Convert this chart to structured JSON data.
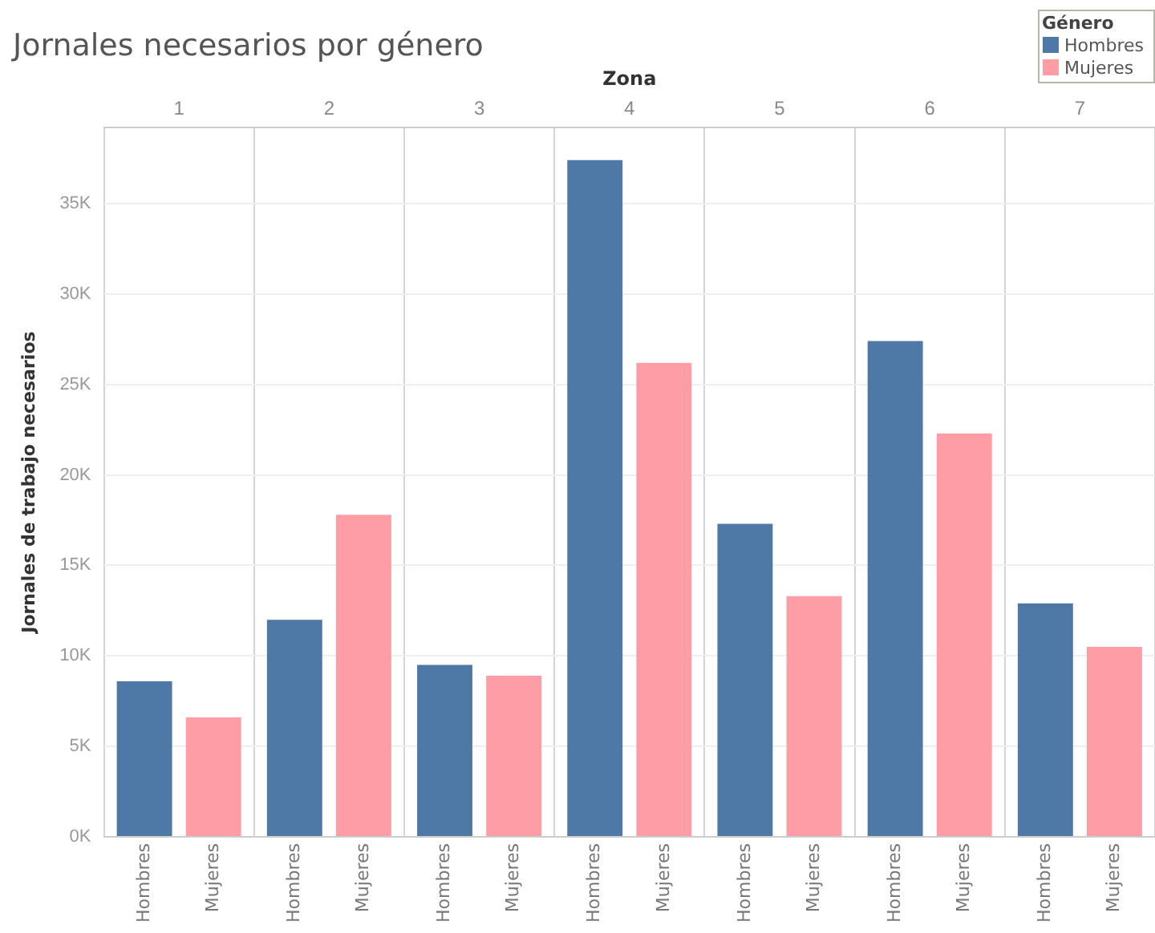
{
  "chart_data": {
    "type": "bar",
    "title": "Jornales necesarios por género",
    "xlabel": "Zona",
    "ylabel": "Jornales de trabajo necesarios",
    "legend_title": "Género",
    "categories": [
      "1",
      "2",
      "3",
      "4",
      "5",
      "6",
      "7"
    ],
    "series": [
      {
        "name": "Hombres",
        "color": "#4e79a7",
        "values": [
          8600,
          12000,
          9500,
          37400,
          17300,
          27400,
          12900
        ]
      },
      {
        "name": "Mujeres",
        "color": "#ff9da7",
        "values": [
          6600,
          17800,
          8900,
          26200,
          13300,
          22300,
          10500
        ]
      }
    ],
    "ylim": [
      0,
      39200
    ],
    "yticks": [
      {
        "value": 0,
        "label": "0K"
      },
      {
        "value": 5000,
        "label": "5K"
      },
      {
        "value": 10000,
        "label": "10K"
      },
      {
        "value": 15000,
        "label": "15K"
      },
      {
        "value": 20000,
        "label": "20K"
      },
      {
        "value": 25000,
        "label": "25K"
      },
      {
        "value": 30000,
        "label": "30K"
      },
      {
        "value": 35000,
        "label": "35K"
      }
    ],
    "grid": true,
    "legend": "top right"
  }
}
